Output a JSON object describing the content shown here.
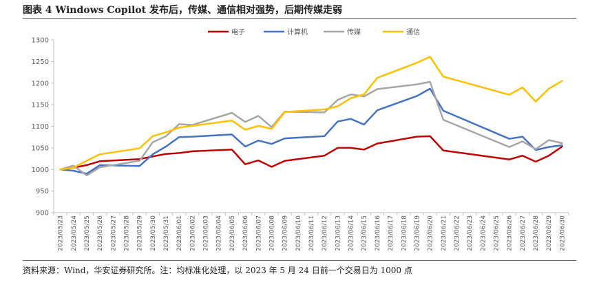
{
  "header": {
    "title": "图表 4 Windows Copilot 发布后，传媒、通信相对强势，后期传媒走弱"
  },
  "footer": {
    "source": "资料来源：Wind，华安证券研究所。注：均标准化处理，以 2023 年 5 月 24 日前一个交易日为 1000 点"
  },
  "colors": {
    "电子": "#C00000",
    "计算机": "#4472C4",
    "传媒": "#A6A6A6",
    "通信": "#FFC000",
    "axis": "#BFBFBF",
    "text": "#595959"
  },
  "chart_data": {
    "type": "line",
    "title": "图表 4 Windows Copilot 发布后，传媒、通信相对强势，后期传媒走弱",
    "xlabel": "",
    "ylabel": "",
    "ylim": [
      900,
      1300
    ],
    "yticks": [
      900,
      950,
      1000,
      1050,
      1100,
      1150,
      1200,
      1250,
      1300
    ],
    "grid": false,
    "legend_position": "top-center",
    "x": [
      "2023/05/23",
      "2023/05/24",
      "2023/05/25",
      "2023/05/26",
      "2023/05/27",
      "2023/05/28",
      "2023/05/29",
      "2023/05/30",
      "2023/05/31",
      "2023/06/01",
      "2023/06/02",
      "2023/06/03",
      "2023/06/04",
      "2023/06/05",
      "2023/06/06",
      "2023/06/07",
      "2023/06/08",
      "2023/06/09",
      "2023/06/10",
      "2023/06/11",
      "2023/06/12",
      "2023/06/13",
      "2023/06/14",
      "2023/06/15",
      "2023/06/16",
      "2023/06/17",
      "2023/06/18",
      "2023/06/19",
      "2023/06/20",
      "2023/06/21",
      "2023/06/22",
      "2023/06/23",
      "2023/06/24",
      "2023/06/25",
      "2023/06/26",
      "2023/06/27",
      "2023/06/28",
      "2023/06/29",
      "2023/06/30"
    ],
    "series": [
      {
        "name": "电子",
        "color": "#C00000",
        "points": [
          [
            "2023/05/23",
            1000
          ],
          [
            "2023/05/24",
            1004
          ],
          [
            "2023/05/25",
            1010
          ],
          [
            "2023/05/26",
            1019
          ],
          [
            "2023/05/29",
            1024
          ],
          [
            "2023/05/30",
            1030
          ],
          [
            "2023/05/31",
            1036
          ],
          [
            "2023/06/01",
            1038
          ],
          [
            "2023/06/02",
            1042
          ],
          [
            "2023/06/05",
            1046
          ],
          [
            "2023/06/06",
            1012
          ],
          [
            "2023/06/07",
            1021
          ],
          [
            "2023/06/08",
            1006
          ],
          [
            "2023/06/09",
            1020
          ],
          [
            "2023/06/12",
            1032
          ],
          [
            "2023/06/13",
            1050
          ],
          [
            "2023/06/14",
            1050
          ],
          [
            "2023/06/15",
            1046
          ],
          [
            "2023/06/16",
            1060
          ],
          [
            "2023/06/19",
            1076
          ],
          [
            "2023/06/20",
            1077
          ],
          [
            "2023/06/21",
            1044
          ],
          [
            "2023/06/26",
            1023
          ],
          [
            "2023/06/27",
            1032
          ],
          [
            "2023/06/28",
            1018
          ],
          [
            "2023/06/29",
            1032
          ],
          [
            "2023/06/30",
            1053
          ]
        ]
      },
      {
        "name": "计算机",
        "color": "#4472C4",
        "points": [
          [
            "2023/05/23",
            1000
          ],
          [
            "2023/05/24",
            997
          ],
          [
            "2023/05/25",
            990
          ],
          [
            "2023/05/26",
            1010
          ],
          [
            "2023/05/29",
            1008
          ],
          [
            "2023/05/30",
            1035
          ],
          [
            "2023/05/31",
            1053
          ],
          [
            "2023/06/01",
            1075
          ],
          [
            "2023/06/02",
            1076
          ],
          [
            "2023/06/05",
            1081
          ],
          [
            "2023/06/06",
            1053
          ],
          [
            "2023/06/07",
            1067
          ],
          [
            "2023/06/08",
            1059
          ],
          [
            "2023/06/09",
            1072
          ],
          [
            "2023/06/12",
            1077
          ],
          [
            "2023/06/13",
            1111
          ],
          [
            "2023/06/14",
            1117
          ],
          [
            "2023/06/15",
            1104
          ],
          [
            "2023/06/16",
            1137
          ],
          [
            "2023/06/19",
            1170
          ],
          [
            "2023/06/20",
            1187
          ],
          [
            "2023/06/21",
            1136
          ],
          [
            "2023/06/26",
            1071
          ],
          [
            "2023/06/27",
            1076
          ],
          [
            "2023/06/28",
            1045
          ],
          [
            "2023/06/29",
            1052
          ],
          [
            "2023/06/30",
            1056
          ]
        ]
      },
      {
        "name": "传媒",
        "color": "#A6A6A6",
        "points": [
          [
            "2023/05/23",
            1000
          ],
          [
            "2023/05/24",
            1009
          ],
          [
            "2023/05/25",
            986
          ],
          [
            "2023/05/26",
            1005
          ],
          [
            "2023/05/29",
            1020
          ],
          [
            "2023/05/30",
            1063
          ],
          [
            "2023/05/31",
            1077
          ],
          [
            "2023/06/01",
            1105
          ],
          [
            "2023/06/02",
            1103
          ],
          [
            "2023/06/05",
            1131
          ],
          [
            "2023/06/06",
            1110
          ],
          [
            "2023/06/07",
            1124
          ],
          [
            "2023/06/08",
            1098
          ],
          [
            "2023/06/09",
            1134
          ],
          [
            "2023/06/12",
            1132
          ],
          [
            "2023/06/13",
            1161
          ],
          [
            "2023/06/14",
            1174
          ],
          [
            "2023/06/15",
            1169
          ],
          [
            "2023/06/16",
            1186
          ],
          [
            "2023/06/19",
            1197
          ],
          [
            "2023/06/20",
            1203
          ],
          [
            "2023/06/21",
            1115
          ],
          [
            "2023/06/26",
            1052
          ],
          [
            "2023/06/27",
            1065
          ],
          [
            "2023/06/28",
            1047
          ],
          [
            "2023/06/29",
            1068
          ],
          [
            "2023/06/30",
            1061
          ]
        ]
      },
      {
        "name": "通信",
        "color": "#FFC000",
        "points": [
          [
            "2023/05/23",
            1000
          ],
          [
            "2023/05/24",
            1004
          ],
          [
            "2023/05/25",
            1020
          ],
          [
            "2023/05/26",
            1035
          ],
          [
            "2023/05/29",
            1049
          ],
          [
            "2023/05/30",
            1077
          ],
          [
            "2023/05/31",
            1086
          ],
          [
            "2023/06/01",
            1097
          ],
          [
            "2023/06/02",
            1101
          ],
          [
            "2023/06/05",
            1113
          ],
          [
            "2023/06/06",
            1092
          ],
          [
            "2023/06/07",
            1101
          ],
          [
            "2023/06/08",
            1094
          ],
          [
            "2023/06/09",
            1133
          ],
          [
            "2023/06/12",
            1139
          ],
          [
            "2023/06/13",
            1146
          ],
          [
            "2023/06/14",
            1165
          ],
          [
            "2023/06/15",
            1174
          ],
          [
            "2023/06/16",
            1212
          ],
          [
            "2023/06/19",
            1247
          ],
          [
            "2023/06/20",
            1261
          ],
          [
            "2023/06/21",
            1215
          ],
          [
            "2023/06/26",
            1173
          ],
          [
            "2023/06/27",
            1190
          ],
          [
            "2023/06/28",
            1157
          ],
          [
            "2023/06/29",
            1187
          ],
          [
            "2023/06/30",
            1205
          ]
        ]
      }
    ]
  }
}
